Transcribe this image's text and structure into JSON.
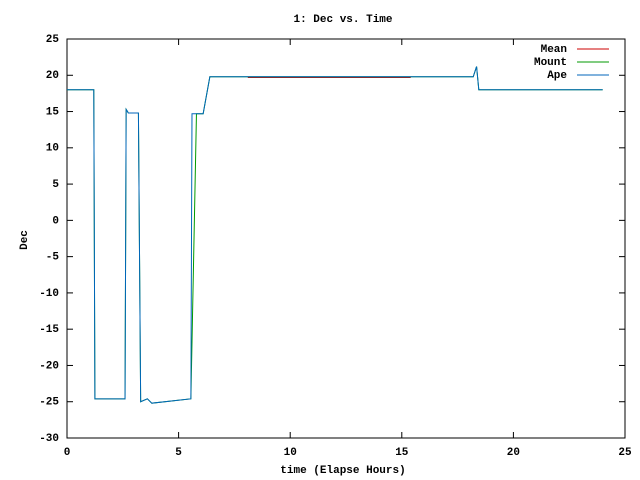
{
  "chart_data": {
    "type": "line",
    "title": "1: Dec vs. Time",
    "x_label": "time (Elapse Hours)",
    "y_label": "Dec",
    "x": [
      0,
      1.2,
      1.25,
      2.6,
      2.65,
      2.75,
      3.2,
      3.3,
      3.6,
      3.8,
      5.55,
      5.6,
      5.8,
      6.1,
      6.4,
      8.1,
      15.4,
      18.2,
      18.35,
      18.45,
      24
    ],
    "series": [
      {
        "name": "Mean",
        "color": "#cc0000",
        "values": [
          null,
          null,
          null,
          null,
          null,
          null,
          null,
          null,
          null,
          null,
          null,
          null,
          null,
          null,
          null,
          19.7,
          19.7,
          null,
          null,
          null,
          null
        ]
      },
      {
        "name": "Mount",
        "color": "#009900",
        "values": [
          18,
          18,
          -24.6,
          -24.6,
          15.3,
          14.8,
          14.8,
          -25,
          -24.6,
          -25.2,
          -24.6,
          -16.8,
          14.7,
          14.7,
          19.8,
          19.8,
          19.8,
          19.8,
          21.2,
          18,
          18
        ]
      },
      {
        "name": "Ape",
        "color": "#0066bb",
        "values": [
          18,
          18,
          -24.6,
          -24.6,
          15.3,
          14.8,
          14.8,
          -25,
          -24.6,
          -25.2,
          -24.6,
          14.7,
          14.7,
          14.7,
          19.8,
          19.8,
          19.8,
          19.8,
          21.2,
          18,
          18
        ]
      }
    ],
    "xlim": [
      0,
      25
    ],
    "xticks": [
      0,
      5,
      10,
      15,
      20,
      25
    ],
    "ylim": [
      -30,
      25
    ],
    "yticks": [
      -30,
      -25,
      -20,
      -15,
      -10,
      -5,
      0,
      5,
      10,
      15,
      20,
      25
    ],
    "grid": false,
    "legend": "top-right"
  }
}
